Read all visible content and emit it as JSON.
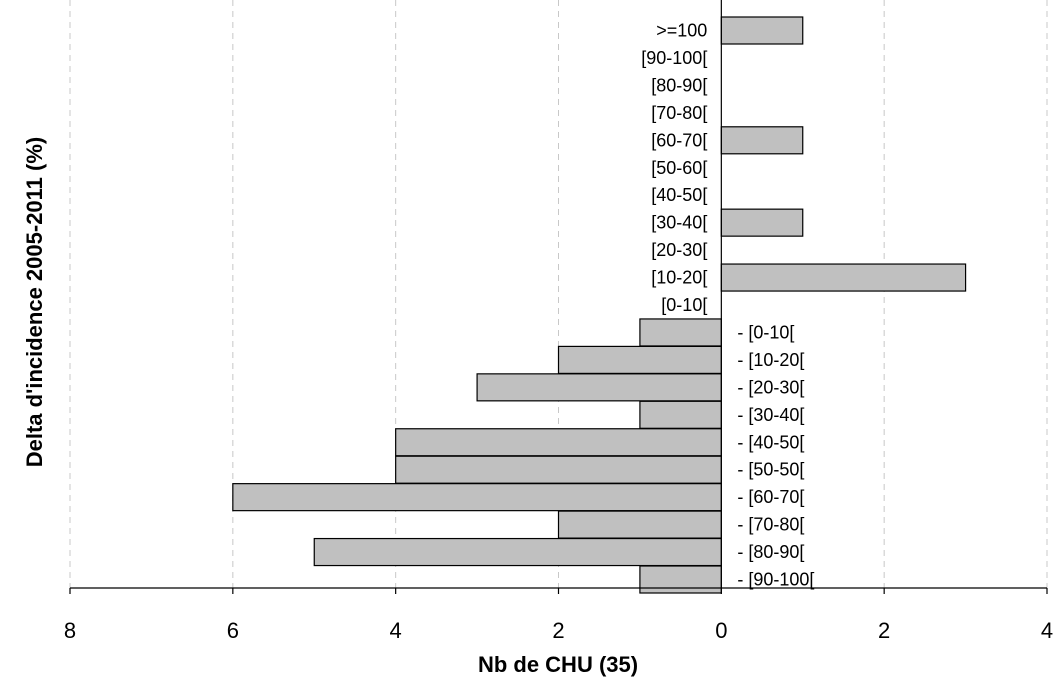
{
  "chart_data": {
    "type": "bar",
    "orientation": "horizontal",
    "xlabel": "Nb de CHU (35)",
    "ylabel": "Delta d'incidence 2005-2011 (%)",
    "xlim": [
      -8,
      4
    ],
    "x_ticks": [
      -8,
      -6,
      -4,
      -2,
      0,
      2,
      4
    ],
    "x_tick_labels": [
      "8",
      "6",
      "4",
      "2",
      "0",
      "2",
      "4"
    ],
    "grid": "vertical dashed",
    "categories": [
      ">=100",
      "[90-100[",
      "[80-90[",
      "[70-80[",
      "[60-70[",
      "[50-60[",
      "[40-50[",
      "[30-40[",
      "[20-30[",
      "[10-20[",
      "[0-10[",
      "- [0-10[",
      "- [10-20[",
      "- [20-30[",
      "- [30-40[",
      "- [40-50[",
      "- [50-50[",
      "- [60-70[",
      "- [70-80[",
      "- [80-90[",
      "- [90-100["
    ],
    "values": [
      1,
      0,
      0,
      0,
      1,
      0,
      0,
      1,
      0,
      3,
      0,
      -1,
      -2,
      -3,
      -1,
      -4,
      -4,
      -6,
      -2,
      -5,
      -1
    ]
  }
}
